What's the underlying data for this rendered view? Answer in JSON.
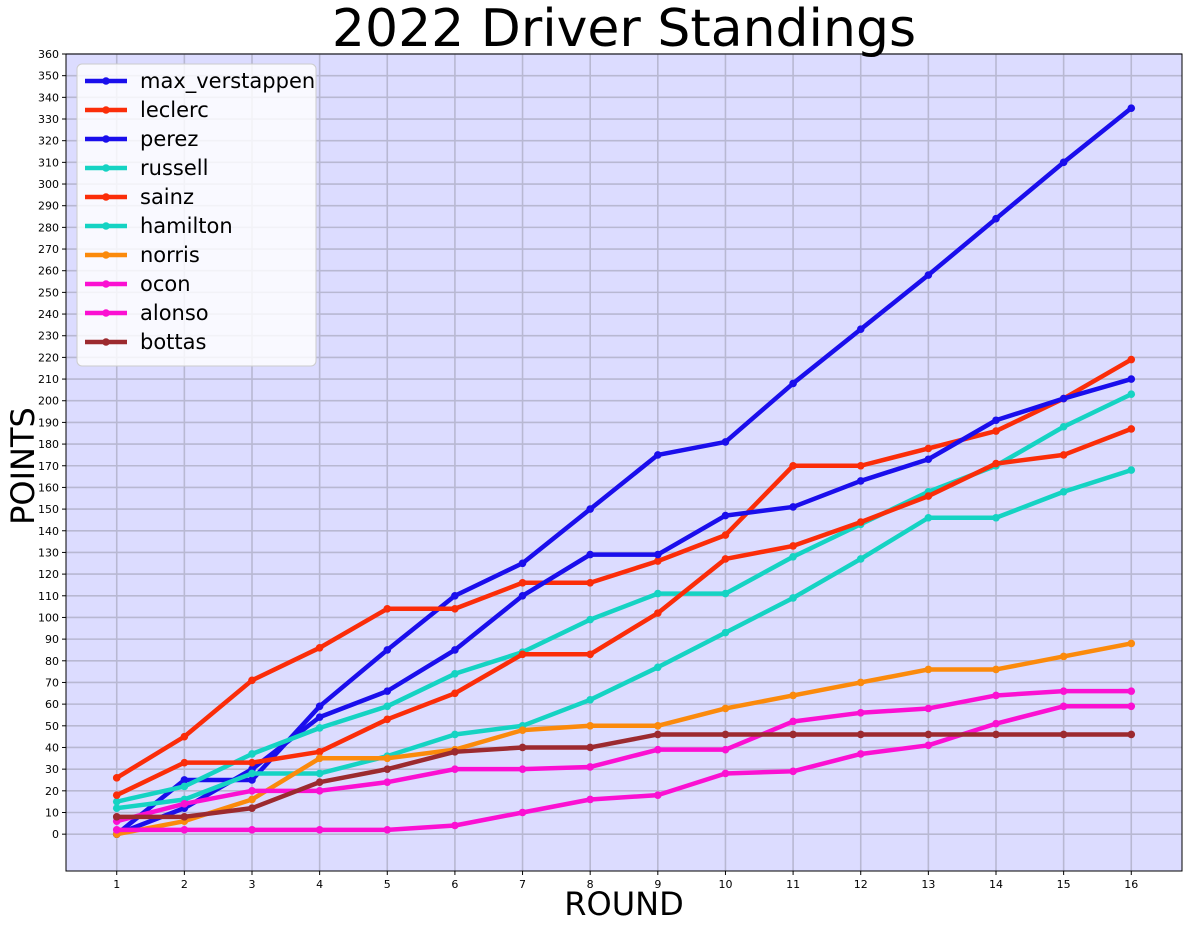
{
  "chart_data": {
    "type": "line",
    "title": "2022 Driver Standings",
    "xlabel": "ROUND",
    "ylabel": "POINTS",
    "x": [
      1,
      2,
      3,
      4,
      5,
      6,
      7,
      8,
      9,
      10,
      11,
      12,
      13,
      14,
      15,
      16
    ],
    "xlim": [
      0.25,
      16.75
    ],
    "ylim": [
      -17,
      360
    ],
    "yticks": [
      0,
      10,
      20,
      30,
      40,
      50,
      60,
      70,
      80,
      90,
      100,
      110,
      120,
      130,
      140,
      150,
      160,
      170,
      180,
      190,
      200,
      210,
      220,
      230,
      240,
      250,
      260,
      270,
      280,
      290,
      300,
      310,
      320,
      330,
      340,
      350,
      360
    ],
    "grid": true,
    "legend_position": "top-left",
    "background_color": "#dcdcff",
    "series": [
      {
        "name": "max_verstappen",
        "color": "#1a0eec",
        "values": [
          0,
          25,
          25,
          59,
          85,
          110,
          125,
          150,
          175,
          181,
          208,
          233,
          258,
          284,
          310,
          335
        ]
      },
      {
        "name": "leclerc",
        "color": "#fb2d09",
        "values": [
          26,
          45,
          71,
          86,
          104,
          104,
          116,
          116,
          126,
          138,
          170,
          170,
          178,
          186,
          201,
          219
        ]
      },
      {
        "name": "perez",
        "color": "#1a0eec",
        "values": [
          0,
          12,
          30,
          54,
          66,
          85,
          110,
          129,
          129,
          147,
          151,
          163,
          173,
          191,
          201,
          210
        ]
      },
      {
        "name": "russell",
        "color": "#15d3c3",
        "values": [
          15,
          22,
          37,
          49,
          59,
          74,
          84,
          99,
          111,
          111,
          128,
          143,
          158,
          170,
          188,
          203
        ]
      },
      {
        "name": "sainz",
        "color": "#fb2d09",
        "values": [
          18,
          33,
          33,
          38,
          53,
          65,
          83,
          83,
          102,
          127,
          133,
          144,
          156,
          171,
          175,
          187
        ]
      },
      {
        "name": "hamilton",
        "color": "#15d3c3",
        "values": [
          12,
          16,
          28,
          28,
          36,
          46,
          50,
          62,
          77,
          93,
          109,
          127,
          146,
          146,
          158,
          168
        ]
      },
      {
        "name": "norris",
        "color": "#fb8a0c",
        "values": [
          0,
          6,
          16,
          35,
          35,
          39,
          48,
          50,
          50,
          58,
          64,
          70,
          76,
          76,
          82,
          88
        ]
      },
      {
        "name": "ocon",
        "color": "#fb10d2",
        "values": [
          6,
          14,
          20,
          20,
          24,
          30,
          30,
          31,
          39,
          39,
          52,
          56,
          58,
          64,
          66,
          66
        ]
      },
      {
        "name": "alonso",
        "color": "#fb10d2",
        "values": [
          2,
          2,
          2,
          2,
          2,
          4,
          10,
          16,
          18,
          28,
          29,
          37,
          41,
          51,
          59,
          59
        ]
      },
      {
        "name": "bottas",
        "color": "#9c2a2f",
        "values": [
          8,
          8,
          12,
          24,
          30,
          38,
          40,
          40,
          46,
          46,
          46,
          46,
          46,
          46,
          46,
          46
        ]
      }
    ]
  }
}
